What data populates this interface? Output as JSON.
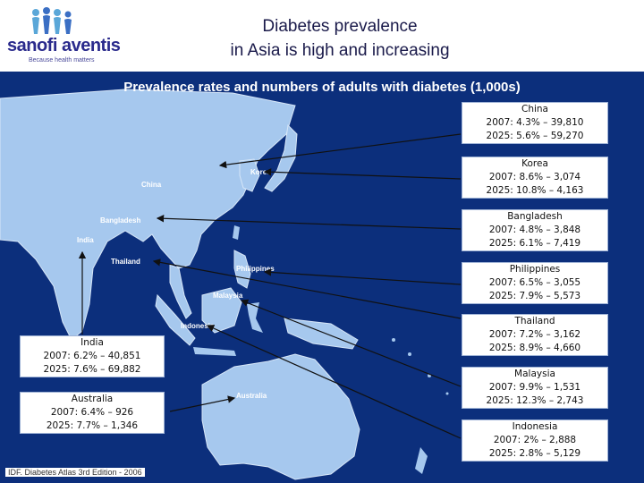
{
  "header": {
    "logo": {
      "name": "sanofi aventis",
      "tagline": "Because health matters"
    },
    "title_line1": "Diabetes prevalence",
    "title_line2": "in Asia is high and increasing"
  },
  "subtitle": "Prevalence rates and numbers of adults with diabetes (1,000s)",
  "map_labels": {
    "china": "China",
    "korea": "Korea",
    "bangladesh": "Bangladesh",
    "india": "India",
    "thailand": "Thailand",
    "philippines": "Philippines",
    "malaysia": "Malaysia",
    "indonesia": "Indonesia",
    "australia": "Australia"
  },
  "callouts": {
    "china": {
      "name": "China",
      "y2007": "2007: 4.3% – 39,810",
      "y2025": "2025: 5.6% – 59,270"
    },
    "korea": {
      "name": "Korea",
      "y2007": "2007: 8.6% – 3,074",
      "y2025": "2025: 10.8% – 4,163"
    },
    "bangladesh": {
      "name": "Bangladesh",
      "y2007": "2007: 4.8% – 3,848",
      "y2025": "2025: 6.1% – 7,419"
    },
    "philippines": {
      "name": "Philippines",
      "y2007": "2007: 6.5% – 3,055",
      "y2025": "2025: 7.9% – 5,573"
    },
    "thailand": {
      "name": "Thailand",
      "y2007": "2007: 7.2% – 3,162",
      "y2025": "2025: 8.9% – 4,660"
    },
    "malaysia": {
      "name": "Malaysia",
      "y2007": "2007: 9.9% – 1,531",
      "y2025": "2025: 12.3% – 2,743"
    },
    "indonesia": {
      "name": "Indonesia",
      "y2007": "2007: 2% – 2,888",
      "y2025": "2025: 2.8% – 5,129"
    },
    "india": {
      "name": "India",
      "y2007": "2007: 6.2% – 40,851",
      "y2025": "2025: 7.6% – 69,882"
    },
    "australia": {
      "name": "Australia",
      "y2007": "2007: 6.4% – 926",
      "y2025": "2025: 7.7% – 1,346"
    }
  },
  "source": "IDF. Diabetes Atlas 3rd Edition - 2006",
  "colors": {
    "ocean": "#0c2f7c",
    "land": "#9fc3ec",
    "title_text": "#1a1a4a",
    "arrow": "#111111"
  }
}
